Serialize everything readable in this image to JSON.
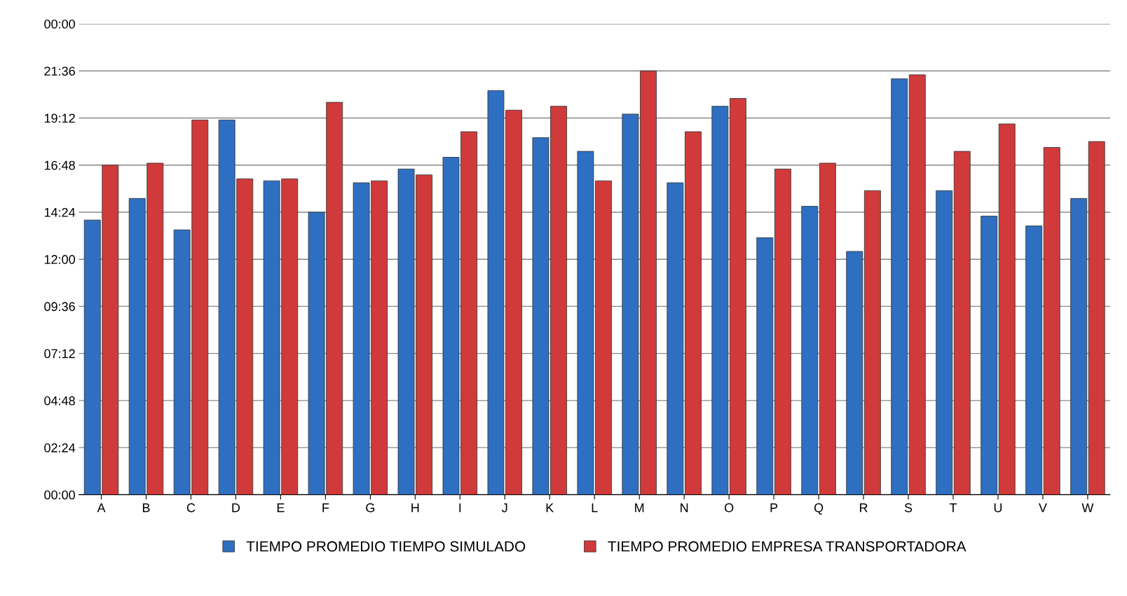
{
  "chart_data": {
    "type": "bar",
    "categories": [
      "A",
      "B",
      "C",
      "D",
      "E",
      "F",
      "G",
      "H",
      "I",
      "J",
      "K",
      "L",
      "M",
      "N",
      "O",
      "P",
      "Q",
      "R",
      "S",
      "T",
      "U",
      "V",
      "W"
    ],
    "series": [
      {
        "name": "TIEMPO PROMEDIO TIEMPO SIMULADO",
        "color": "#2e6fc2",
        "values": [
          14.0,
          15.1,
          13.5,
          19.1,
          16.0,
          14.4,
          15.9,
          16.6,
          17.2,
          20.6,
          18.2,
          17.5,
          19.4,
          15.9,
          19.8,
          13.1,
          14.7,
          12.4,
          21.2,
          15.5,
          14.2,
          13.7,
          15.1
        ]
      },
      {
        "name": "TIEMPO PROMEDIO EMPRESA TRANSPORTADORA",
        "color": "#d13a3a",
        "values": [
          16.8,
          16.9,
          19.1,
          16.1,
          16.1,
          20.0,
          16.0,
          16.3,
          18.5,
          19.6,
          19.8,
          16.0,
          21.6,
          18.5,
          20.2,
          16.6,
          16.9,
          15.5,
          21.4,
          17.5,
          18.9,
          17.7,
          18.0
        ]
      }
    ],
    "ylim": [
      0,
      24
    ],
    "yticks": [
      {
        "value": 0,
        "label": "00:00"
      },
      {
        "value": 2.4,
        "label": "02:24"
      },
      {
        "value": 4.8,
        "label": "04:48"
      },
      {
        "value": 7.2,
        "label": "07:12"
      },
      {
        "value": 9.6,
        "label": "09:36"
      },
      {
        "value": 12,
        "label": "12:00"
      },
      {
        "value": 14.4,
        "label": "14:24"
      },
      {
        "value": 16.8,
        "label": "16:48"
      },
      {
        "value": 19.2,
        "label": "19:12"
      },
      {
        "value": 21.6,
        "label": "21:36"
      },
      {
        "value": 24,
        "label": "00:00"
      }
    ],
    "grid": "y",
    "legend": "bottom"
  }
}
